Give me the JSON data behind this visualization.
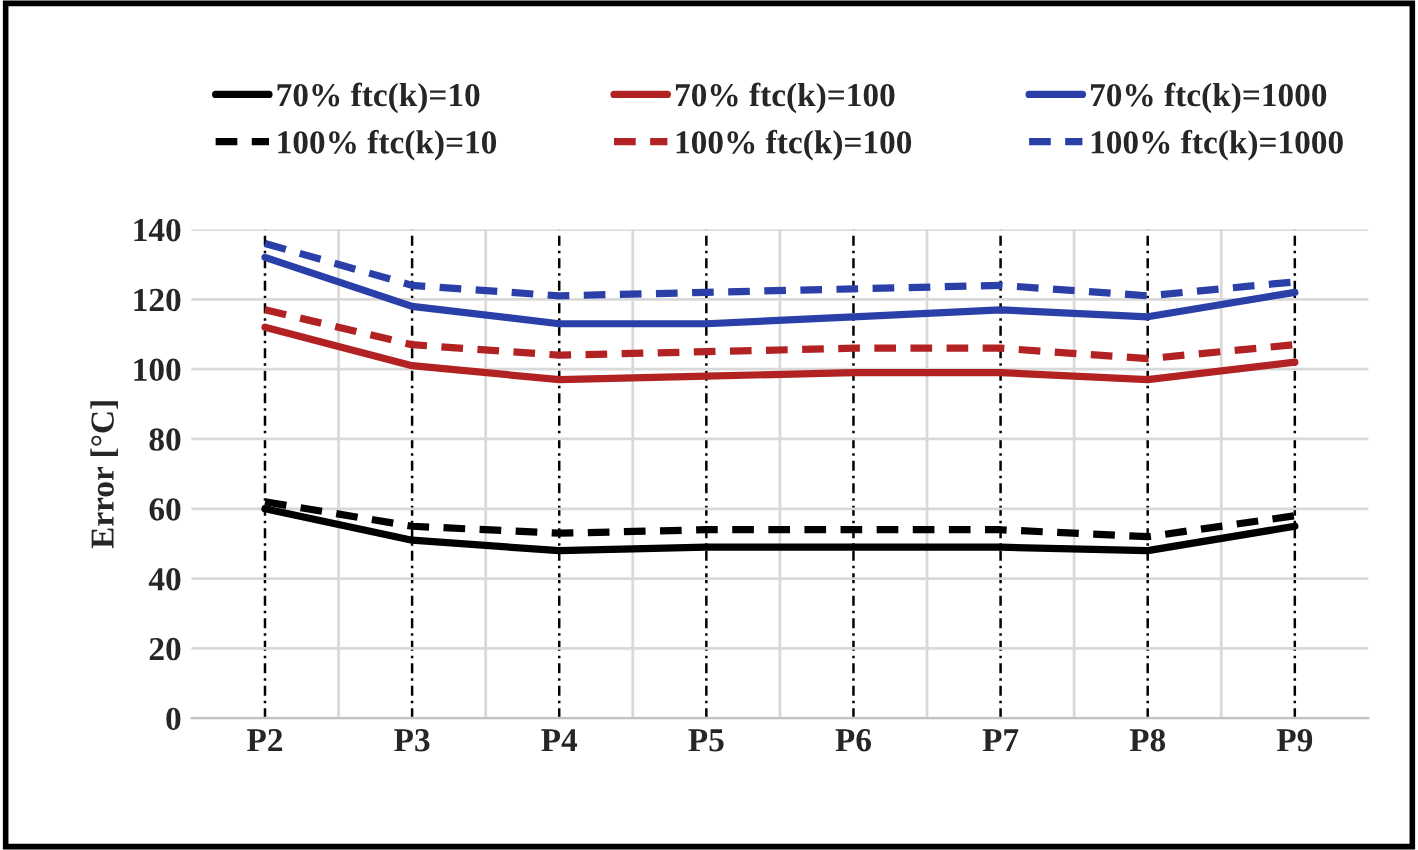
{
  "chart_data": {
    "type": "line",
    "ylabel": "Error [°C]",
    "categories": [
      "P2",
      "P3",
      "P4",
      "P5",
      "P6",
      "P7",
      "P8",
      "P9"
    ],
    "ylim": [
      0,
      140
    ],
    "yticks": [
      0,
      20,
      40,
      60,
      80,
      100,
      120,
      140
    ],
    "grid": true,
    "legend": "top",
    "series": [
      {
        "name": "70% ftc(k)=10",
        "color": "#000000",
        "line_style": "solid",
        "values": [
          60,
          51,
          48,
          49,
          49,
          49,
          48,
          55
        ]
      },
      {
        "name": "70% ftc(k)=100",
        "color": "#b22222",
        "line_style": "solid",
        "values": [
          112,
          101,
          97,
          98,
          99,
          99,
          97,
          102
        ]
      },
      {
        "name": "70% ftc(k)=1000",
        "color": "#2b3fa8",
        "line_style": "solid",
        "values": [
          132,
          118,
          113,
          113,
          115,
          117,
          115,
          122
        ]
      },
      {
        "name": "100% ftc(k)=10",
        "color": "#000000",
        "line_style": "dashed",
        "values": [
          62,
          55,
          53,
          54,
          54,
          54,
          52,
          58
        ]
      },
      {
        "name": "100% ftc(k)=100",
        "color": "#b22222",
        "line_style": "dashed",
        "values": [
          117,
          107,
          104,
          105,
          106,
          106,
          103,
          107
        ]
      },
      {
        "name": "100% ftc(k)=1000",
        "color": "#2b3fa8",
        "line_style": "dashed",
        "values": [
          136,
          124,
          121,
          122,
          123,
          124,
          121,
          125
        ]
      }
    ]
  }
}
